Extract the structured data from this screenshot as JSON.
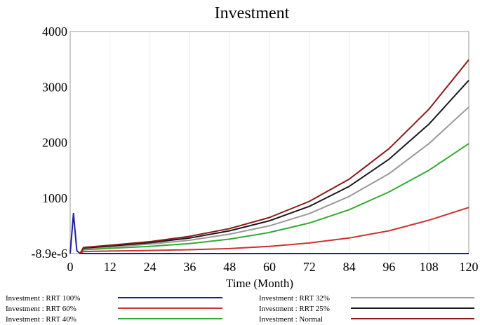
{
  "chart_data": {
    "type": "line",
    "title": "Investment",
    "xlabel": "Time (Month)",
    "ylabel": "",
    "xlim": [
      0,
      120
    ],
    "ylim": [
      -8.9e-06,
      4000
    ],
    "x_ticks": [
      "0",
      "12",
      "24",
      "36",
      "48",
      "60",
      "72",
      "84",
      "96",
      "108",
      "120"
    ],
    "y_ticks": [
      "-8.9e-6",
      "1000",
      "2000",
      "3000",
      "4000"
    ],
    "grid": true,
    "legend_position": "bottom",
    "series": [
      {
        "name": "Investment : RRT 100%",
        "color": "#1f1f9a",
        "x": [
          0,
          1,
          2,
          3,
          4,
          12,
          24,
          36,
          48,
          60,
          72,
          84,
          96,
          108,
          120
        ],
        "y": [
          0,
          720,
          50,
          0,
          0,
          0,
          0,
          0,
          0,
          0,
          0,
          0,
          0,
          0,
          0
        ]
      },
      {
        "name": "Investment : RRT 60%",
        "color": "#cc3333",
        "x": [
          3,
          4,
          12,
          24,
          36,
          48,
          60,
          72,
          84,
          96,
          108,
          120
        ],
        "y": [
          0,
          35,
          45,
          55,
          70,
          90,
          130,
          190,
          280,
          410,
          600,
          830
        ]
      },
      {
        "name": "Investment : RRT 40%",
        "color": "#33aa33",
        "x": [
          3,
          4,
          12,
          24,
          36,
          48,
          60,
          72,
          84,
          96,
          108,
          120
        ],
        "y": [
          0,
          70,
          95,
          130,
          180,
          260,
          380,
          550,
          790,
          1110,
          1500,
          1980
        ]
      },
      {
        "name": "Investment : RRT 32%",
        "color": "#999999",
        "x": [
          3,
          4,
          12,
          24,
          36,
          48,
          60,
          72,
          84,
          96,
          108,
          120
        ],
        "y": [
          0,
          90,
          120,
          170,
          240,
          350,
          500,
          720,
          1030,
          1440,
          1980,
          2640
        ]
      },
      {
        "name": "Investment : RRT 25%",
        "color": "#1a1a1a",
        "x": [
          3,
          4,
          12,
          24,
          36,
          48,
          60,
          72,
          84,
          96,
          108,
          120
        ],
        "y": [
          0,
          100,
          135,
          195,
          280,
          410,
          590,
          850,
          1210,
          1700,
          2330,
          3120
        ]
      },
      {
        "name": "Investment : Normal",
        "color": "#8b1a1a",
        "x": [
          3,
          4,
          12,
          24,
          36,
          48,
          60,
          72,
          84,
          96,
          108,
          120
        ],
        "y": [
          0,
          110,
          150,
          215,
          310,
          450,
          650,
          940,
          1340,
          1890,
          2600,
          3490
        ]
      }
    ]
  }
}
